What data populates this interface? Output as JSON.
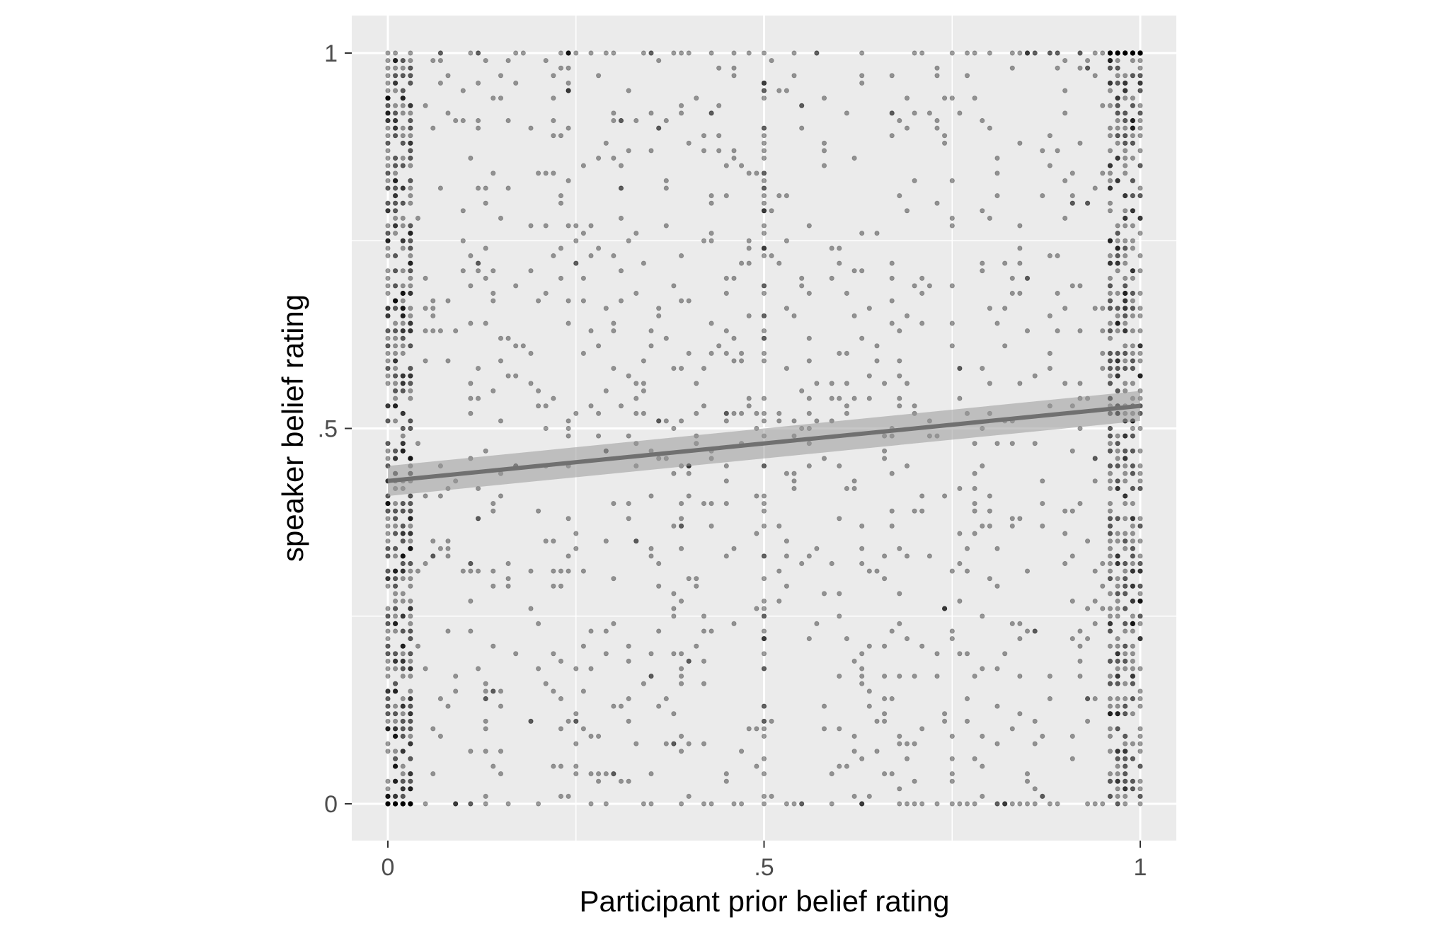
{
  "chart_data": {
    "type": "scatter",
    "title": "",
    "xlabel": "Participant prior belief rating",
    "ylabel": "speaker belief rating",
    "xlim": [
      -0.05,
      1.05
    ],
    "ylim": [
      -0.05,
      1.05
    ],
    "x_ticks": [
      {
        "value": 0,
        "label": "0"
      },
      {
        "value": 0.5,
        "label": ".5"
      },
      {
        "value": 1,
        "label": "1"
      }
    ],
    "y_ticks": [
      {
        "value": 0,
        "label": "0"
      },
      {
        "value": 0.5,
        "label": ".5"
      },
      {
        "value": 1,
        "label": "1"
      }
    ],
    "minor_grid": [
      0.25,
      0.75
    ],
    "grid": true,
    "legend": "none",
    "points_estimate": {
      "count_approx": 2300,
      "x_range": [
        0,
        1
      ],
      "y_range": [
        0,
        1
      ],
      "resolution": 0.01,
      "note": "heavy clustering at x = 0 and x = 1; uniform scatter between"
    },
    "fit_line": {
      "method": "linear regression",
      "x": [
        0,
        1
      ],
      "y": [
        0.43,
        0.53
      ],
      "ci_lower": [
        0.41,
        0.51
      ],
      "ci_upper": [
        0.45,
        0.55
      ]
    },
    "colors": {
      "panel_background": "#ebebeb",
      "grid": "#ffffff",
      "points": "#000000",
      "fit_line": "#707070",
      "ci_band": "#999999"
    }
  }
}
